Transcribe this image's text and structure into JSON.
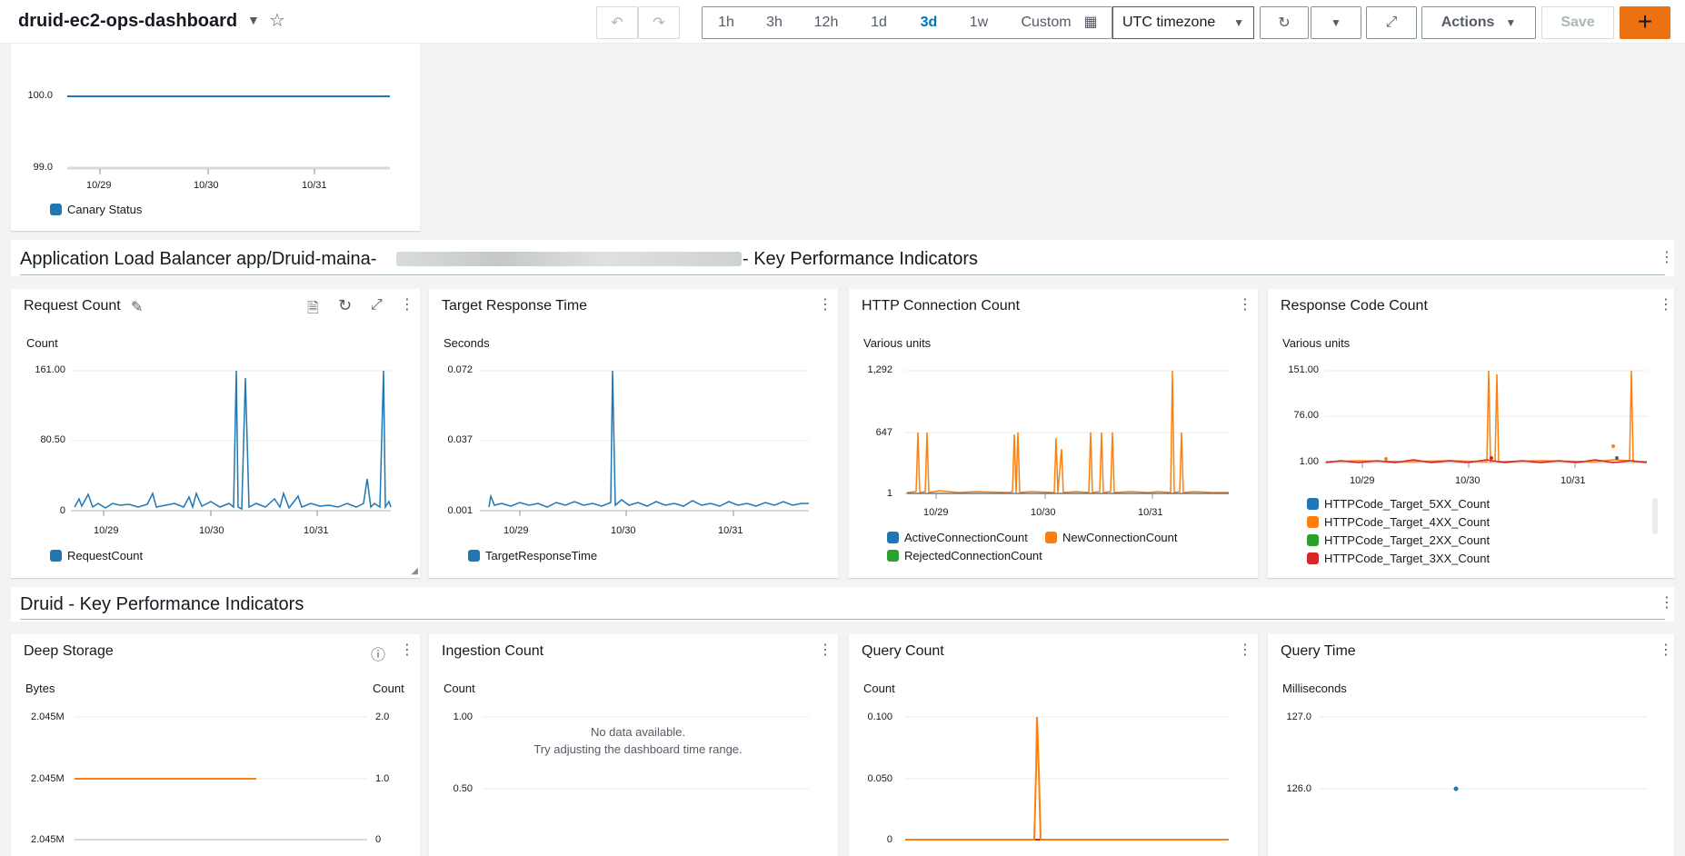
{
  "header": {
    "title": "druid-ec2-ops-dashboard",
    "ranges": [
      "1h",
      "3h",
      "12h",
      "1d",
      "3d",
      "1w",
      "Custom"
    ],
    "active_range": "3d",
    "timezone": "UTC timezone",
    "actions_label": "Actions",
    "save_label": "Save",
    "add_label": "+"
  },
  "canary": {
    "yticks": [
      "100.0",
      "99.0"
    ],
    "xticks": [
      "10/29",
      "10/30",
      "10/31"
    ],
    "legend": "Canary Status",
    "color": "#1f77b4"
  },
  "alb_section": {
    "title_prefix": "Application Load Balancer app/Druid-maina-",
    "title_suffix": "- Key Performance Indicators"
  },
  "druid_section": {
    "title": "Druid - Key Performance Indicators"
  },
  "alb_widgets": [
    {
      "title": "Request Count",
      "unit": "Count",
      "yticks": [
        "161.00",
        "80.50",
        "0"
      ],
      "xticks": [
        "10/29",
        "10/30",
        "10/31"
      ],
      "legend": [
        "RequestCount"
      ]
    },
    {
      "title": "Target Response Time",
      "unit": "Seconds",
      "yticks": [
        "0.072",
        "0.037",
        "0.001"
      ],
      "xticks": [
        "10/29",
        "10/30",
        "10/31"
      ],
      "legend": [
        "TargetResponseTime"
      ]
    },
    {
      "title": "HTTP Connection Count",
      "unit": "Various units",
      "yticks": [
        "1,292",
        "647",
        "1"
      ],
      "xticks": [
        "10/29",
        "10/30",
        "10/31"
      ],
      "legend": [
        "ActiveConnectionCount",
        "NewConnectionCount",
        "RejectedConnectionCount"
      ]
    },
    {
      "title": "Response Code Count",
      "unit": "Various units",
      "yticks": [
        "151.00",
        "76.00",
        "1.00"
      ],
      "xticks": [
        "10/29",
        "10/30",
        "10/31"
      ],
      "legend": [
        "HTTPCode_Target_5XX_Count",
        "HTTPCode_Target_4XX_Count",
        "HTTPCode_Target_2XX_Count",
        "HTTPCode_Target_3XX_Count"
      ]
    }
  ],
  "druid_widgets": [
    {
      "title": "Deep Storage",
      "unit": "Bytes",
      "unit_right": "Count",
      "yticks": [
        "2.045M",
        "2.045M",
        "2.045M"
      ],
      "yticks_right": [
        "2.0",
        "1.0",
        "0"
      ]
    },
    {
      "title": "Ingestion Count",
      "unit": "Count",
      "yticks": [
        "1.00",
        "0.50"
      ],
      "nodata_1": "No data available.",
      "nodata_2": "Try adjusting the dashboard time range."
    },
    {
      "title": "Query Count",
      "unit": "Count",
      "yticks": [
        "0.100",
        "0.050",
        "0"
      ]
    },
    {
      "title": "Query Time",
      "unit": "Milliseconds",
      "yticks": [
        "127.0",
        "126.0"
      ]
    }
  ],
  "colors": {
    "blue": "#1f77b4",
    "orange": "#ff7f0e",
    "green": "#2ca02c",
    "red": "#d62728",
    "accent": "#ec7211",
    "link": "#0073bb"
  }
}
